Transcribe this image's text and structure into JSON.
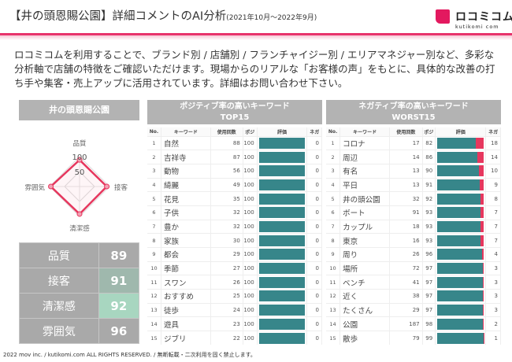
{
  "header": {
    "title": "【井の頭恩賜公園】詳細コメントのAI分析",
    "period": "(2021年10月～2022年9月)"
  },
  "logo": {
    "jp": "ロコミコム",
    "en": "kutikomi com"
  },
  "description": "ロコミコムを利用することで、ブランド別 / 店舗別 / フランチャイジー別 / エリアマネジャー別など、多彩な分析軸で店舗の特徴をご確認いただけます。現場からのリアルな「お客様の声」をもとに、具体的な改善の打ち手や集客・売上アップに活用されています。詳細はお問い合わせ下さい。",
  "left_panel": {
    "title": "井の頭恩賜公園",
    "radar": {
      "axes": [
        "品質",
        "接客",
        "清潔感",
        "雰囲気"
      ],
      "values": [
        89,
        91,
        92,
        96
      ],
      "ticks": [
        "100",
        "50"
      ],
      "max": 100,
      "color": "#e6375e"
    },
    "scores": [
      {
        "label": "品質",
        "value": "89",
        "bg": "#a9a9a9"
      },
      {
        "label": "接客",
        "value": "91",
        "bg": "#9fb8ad"
      },
      {
        "label": "清潔感",
        "value": "92",
        "bg": "#a8d6c0"
      },
      {
        "label": "雰囲気",
        "value": "96",
        "bg": "#a9a9a9"
      }
    ]
  },
  "columns": [
    "No.",
    "キーワード",
    "使用回数",
    "ポジ",
    "評価",
    "ネガ"
  ],
  "positive": {
    "title1": "ポジティブ率の高いキーワード",
    "title2": "TOP15",
    "rows": [
      [
        "1",
        "自然",
        "88",
        "100",
        "0"
      ],
      [
        "2",
        "吉祥寺",
        "87",
        "100",
        "0"
      ],
      [
        "3",
        "動物",
        "56",
        "100",
        "0"
      ],
      [
        "4",
        "綺麗",
        "49",
        "100",
        "0"
      ],
      [
        "5",
        "花見",
        "35",
        "100",
        "0"
      ],
      [
        "6",
        "子供",
        "32",
        "100",
        "0"
      ],
      [
        "7",
        "豊か",
        "32",
        "100",
        "0"
      ],
      [
        "8",
        "家族",
        "30",
        "100",
        "0"
      ],
      [
        "9",
        "都会",
        "29",
        "100",
        "0"
      ],
      [
        "10",
        "季節",
        "27",
        "100",
        "0"
      ],
      [
        "11",
        "スワン",
        "26",
        "100",
        "0"
      ],
      [
        "12",
        "おすすめ",
        "25",
        "100",
        "0"
      ],
      [
        "13",
        "徒歩",
        "24",
        "100",
        "0"
      ],
      [
        "14",
        "遊具",
        "23",
        "100",
        "0"
      ],
      [
        "15",
        "ジブリ",
        "22",
        "100",
        "0"
      ]
    ]
  },
  "negative": {
    "title1": "ネガティブ率の高いキーワード",
    "title2": "WORST15",
    "rows": [
      [
        "1",
        "コロナ",
        "17",
        "82",
        "18"
      ],
      [
        "2",
        "周辺",
        "14",
        "86",
        "14"
      ],
      [
        "3",
        "有名",
        "13",
        "90",
        "10"
      ],
      [
        "4",
        "平日",
        "13",
        "91",
        "9"
      ],
      [
        "5",
        "井の頭公園",
        "32",
        "92",
        "8"
      ],
      [
        "6",
        "ボート",
        "91",
        "93",
        "7"
      ],
      [
        "7",
        "カップル",
        "18",
        "93",
        "7"
      ],
      [
        "8",
        "東京",
        "16",
        "93",
        "7"
      ],
      [
        "9",
        "周り",
        "26",
        "96",
        "4"
      ],
      [
        "10",
        "場所",
        "72",
        "97",
        "3"
      ],
      [
        "11",
        "ベンチ",
        "41",
        "97",
        "3"
      ],
      [
        "12",
        "近く",
        "38",
        "97",
        "3"
      ],
      [
        "13",
        "たくさん",
        "29",
        "97",
        "3"
      ],
      [
        "14",
        "公園",
        "187",
        "98",
        "2"
      ],
      [
        "15",
        "散歩",
        "79",
        "99",
        "1"
      ]
    ]
  },
  "colors": {
    "positive": "#37868a",
    "negative": "#e6375e",
    "accent": "#e3195f"
  },
  "footer": "2022 mov inc. / kutikomi.com ALL RIGHTS RESERVED. / 無断転載・二次利用を固く禁止します。"
}
